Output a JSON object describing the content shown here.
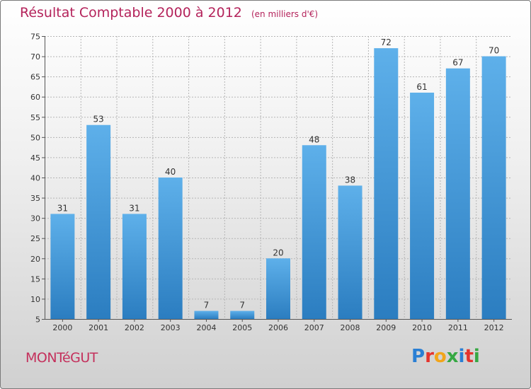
{
  "chart_data": {
    "type": "bar",
    "title": "Résultat Comptable 2000 à 2012",
    "subtitle": "(en milliers d'€)",
    "categories": [
      "2000",
      "2001",
      "2002",
      "2003",
      "2004",
      "2005",
      "2006",
      "2007",
      "2008",
      "2009",
      "2010",
      "2011",
      "2012"
    ],
    "values": [
      31,
      53,
      31,
      40,
      7,
      7,
      20,
      48,
      38,
      72,
      61,
      67,
      70
    ],
    "ylim": [
      5,
      75
    ],
    "yticks": [
      5,
      10,
      15,
      20,
      25,
      30,
      35,
      40,
      45,
      50,
      55,
      60,
      65,
      70,
      75
    ],
    "grid": true,
    "xlabel": "",
    "ylabel": ""
  },
  "footer": {
    "commune": "MONTéGUT",
    "brand_letters": [
      "P",
      "r",
      "o",
      "x",
      "i",
      "t",
      "i"
    ],
    "brand_colors": [
      "#2a7fd4",
      "#e5342d",
      "#f2a51a",
      "#36a843",
      "#2a7fd4",
      "#e5342d",
      "#36a843"
    ]
  },
  "colors": {
    "bar_top": "#5eb0ea",
    "bar_bottom": "#2b7dc0",
    "grid": "#b5b5b5",
    "axis": "#555555"
  }
}
